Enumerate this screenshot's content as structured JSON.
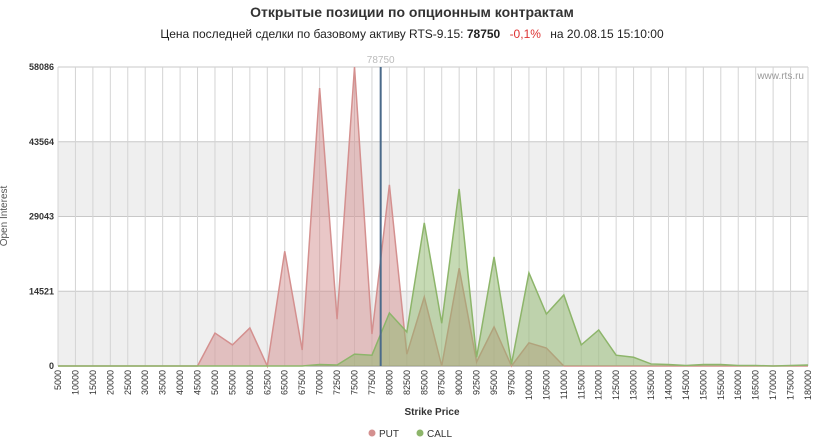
{
  "chart_data": {
    "type": "area",
    "title": "Открытые позиции по опционным контрактам",
    "subtitle": {
      "prefix": "Цена последней сделки по базовому активу RTS-9.15:",
      "change": "-0,1%",
      "date": "на 20.08.15 15:10:00"
    },
    "watermark": "www.rts.ru",
    "x_label": "Strike Price",
    "y_label": "Open Interest",
    "marker": {
      "value": 78750,
      "color": "#4a6a8a"
    },
    "categories": [
      5000,
      10000,
      15000,
      20000,
      25000,
      30000,
      35000,
      40000,
      45000,
      50000,
      55000,
      60000,
      62500,
      65000,
      67500,
      70000,
      72500,
      75000,
      77500,
      80000,
      82500,
      85000,
      87500,
      90000,
      92500,
      95000,
      97500,
      100000,
      105000,
      110000,
      115000,
      120000,
      125000,
      130000,
      135000,
      140000,
      145000,
      150000,
      155000,
      160000,
      165000,
      170000,
      175000,
      180000
    ],
    "series": [
      {
        "name": "PUT",
        "color": "#d4908f",
        "values": [
          0,
          0,
          0,
          0,
          0,
          0,
          0,
          0,
          0,
          6400,
          4100,
          7400,
          0,
          22300,
          3100,
          54000,
          9100,
          58086,
          6200,
          35200,
          2300,
          13400,
          0,
          19000,
          800,
          7600,
          0,
          4500,
          3500,
          0,
          0,
          0,
          0,
          0,
          0,
          0,
          0,
          0,
          0,
          0,
          0,
          0,
          0,
          0
        ]
      },
      {
        "name": "CALL",
        "color": "#8db56a",
        "values": [
          0,
          0,
          0,
          0,
          0,
          0,
          0,
          0,
          0,
          0,
          0,
          0,
          0,
          0,
          0,
          300,
          200,
          2300,
          2100,
          10300,
          6600,
          27800,
          8300,
          34400,
          1700,
          21200,
          400,
          18100,
          10100,
          13800,
          4100,
          7000,
          2100,
          1700,
          400,
          300,
          100,
          300,
          300,
          100,
          100,
          0,
          100,
          200
        ]
      }
    ],
    "ylim": [
      0,
      58086
    ],
    "yticks": [
      0,
      14521,
      29043,
      43564,
      58086
    ],
    "grid": true
  }
}
